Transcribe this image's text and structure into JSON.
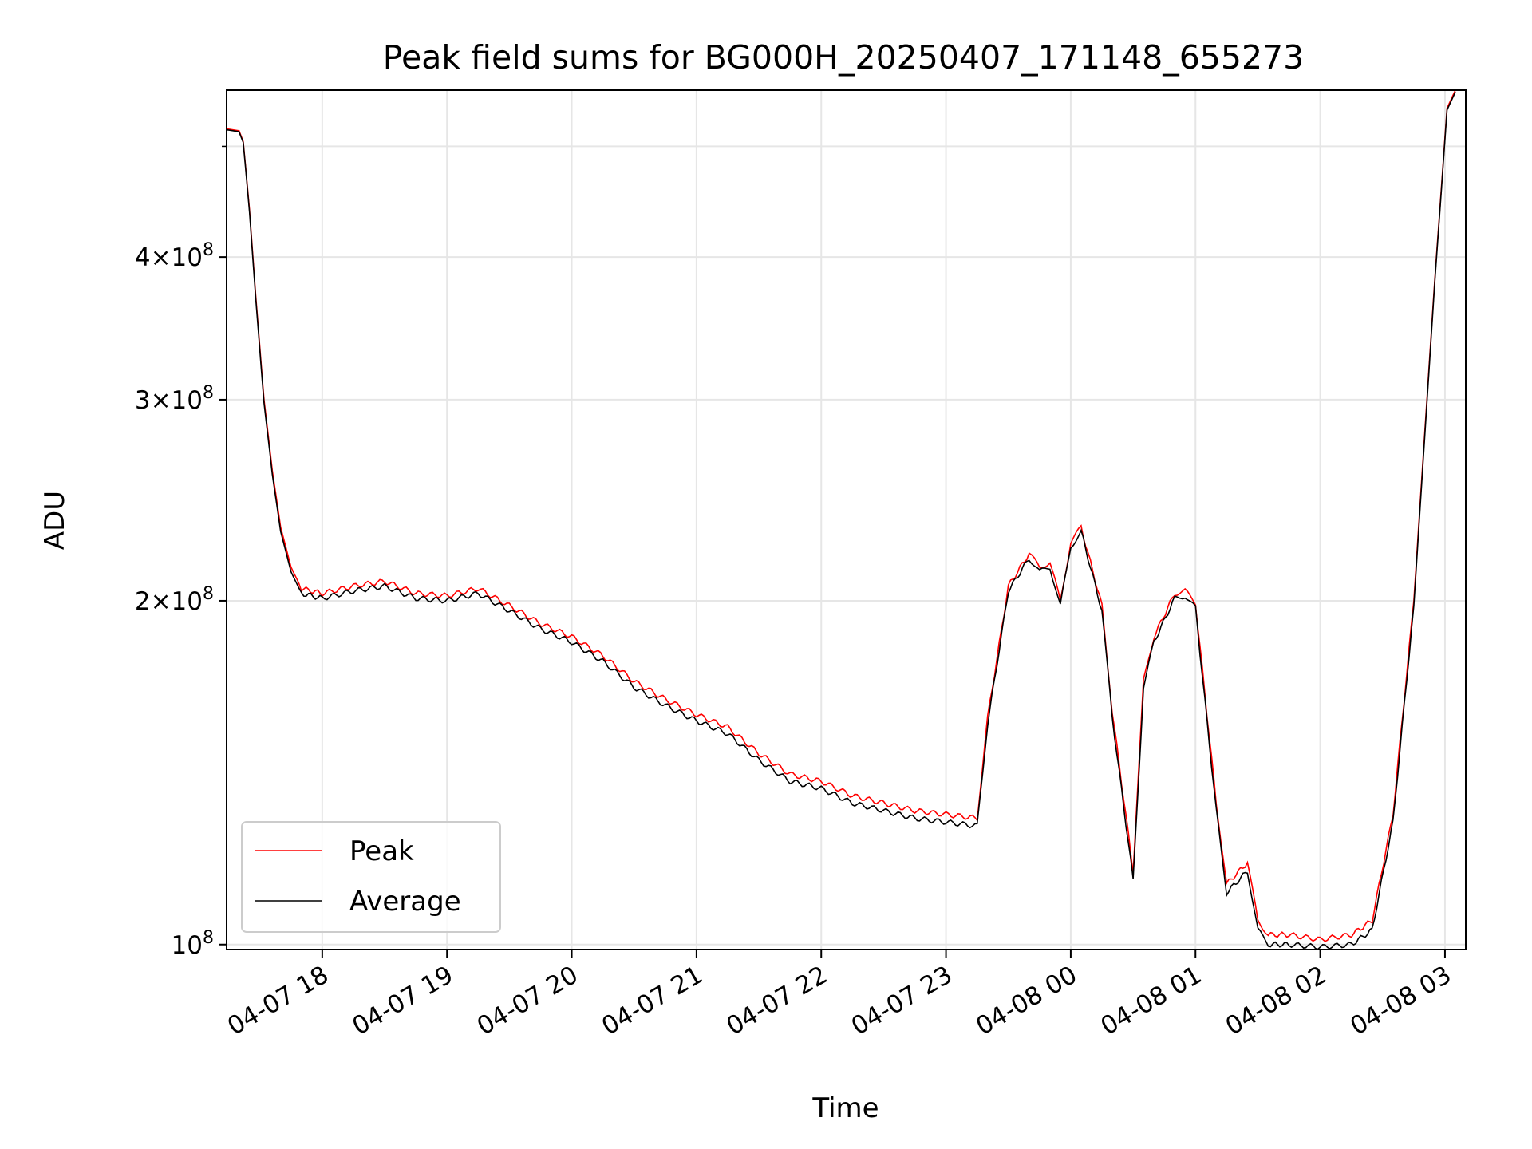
{
  "chart_data": {
    "type": "line",
    "title": "Peak field sums for BG000H_20250407_171148_655273",
    "xlabel": "Time",
    "ylabel": "ADU",
    "yscale": "log",
    "grid": true,
    "legend_position": "lower-left",
    "xlim": [
      "2025-04-07 17:14",
      "2025-04-08 03:10"
    ],
    "ylim": [
      99000000,
      560000000
    ],
    "x_ticks": [
      {
        "label": "04-07 18",
        "value": "2025-04-07 18:00"
      },
      {
        "label": "04-07 19",
        "value": "2025-04-07 19:00"
      },
      {
        "label": "04-07 20",
        "value": "2025-04-07 20:00"
      },
      {
        "label": "04-07 21",
        "value": "2025-04-07 21:00"
      },
      {
        "label": "04-07 22",
        "value": "2025-04-07 22:00"
      },
      {
        "label": "04-07 23",
        "value": "2025-04-07 23:00"
      },
      {
        "label": "04-08 00",
        "value": "2025-04-08 00:00"
      },
      {
        "label": "04-08 01",
        "value": "2025-04-08 01:00"
      },
      {
        "label": "04-08 02",
        "value": "2025-04-08 02:00"
      },
      {
        "label": "04-08 03",
        "value": "2025-04-08 03:00"
      }
    ],
    "y_ticks": [
      {
        "label": "10",
        "exp": "8",
        "value": 100000000
      },
      {
        "label": "2×10",
        "exp": "8",
        "value": 200000000
      },
      {
        "label": "3×10",
        "exp": "8",
        "value": 300000000
      },
      {
        "label": "4×10",
        "exp": "8",
        "value": 400000000
      }
    ],
    "y_minor_ticks": [
      500000000
    ],
    "x": [
      "2025-04-07 17:14",
      "2025-04-07 17:20",
      "2025-04-07 17:22",
      "2025-04-07 17:25",
      "2025-04-07 17:28",
      "2025-04-07 17:32",
      "2025-04-07 17:36",
      "2025-04-07 17:40",
      "2025-04-07 17:45",
      "2025-04-07 17:50",
      "2025-04-07 18:00",
      "2025-04-07 18:15",
      "2025-04-07 18:30",
      "2025-04-07 18:45",
      "2025-04-07 19:00",
      "2025-04-07 19:15",
      "2025-04-07 19:30",
      "2025-04-07 19:45",
      "2025-04-07 20:00",
      "2025-04-07 20:15",
      "2025-04-07 20:30",
      "2025-04-07 20:45",
      "2025-04-07 21:00",
      "2025-04-07 21:15",
      "2025-04-07 21:30",
      "2025-04-07 21:45",
      "2025-04-07 22:00",
      "2025-04-07 22:15",
      "2025-04-07 22:30",
      "2025-04-07 22:45",
      "2025-04-07 23:00",
      "2025-04-07 23:15",
      "2025-04-07 23:20",
      "2025-04-07 23:30",
      "2025-04-07 23:40",
      "2025-04-07 23:45",
      "2025-04-07 23:50",
      "2025-04-07 23:55",
      "2025-04-08 00:00",
      "2025-04-08 00:05",
      "2025-04-08 00:15",
      "2025-04-08 00:20",
      "2025-04-08 00:30",
      "2025-04-08 00:35",
      "2025-04-08 00:40",
      "2025-04-08 00:50",
      "2025-04-08 00:55",
      "2025-04-08 01:00",
      "2025-04-08 01:10",
      "2025-04-08 01:15",
      "2025-04-08 01:25",
      "2025-04-08 01:30",
      "2025-04-08 01:35",
      "2025-04-08 01:45",
      "2025-04-08 02:00",
      "2025-04-08 02:15",
      "2025-04-08 02:25",
      "2025-04-08 02:35",
      "2025-04-08 02:45",
      "2025-04-08 02:55",
      "2025-04-08 03:01",
      "2025-04-08 03:05"
    ],
    "series": [
      {
        "name": "Peak",
        "color": "#ff0000",
        "values": [
          518000000,
          516000000,
          505000000,
          440000000,
          370000000,
          300000000,
          260000000,
          232000000,
          214000000,
          205000000,
          203000000,
          206000000,
          208000000,
          203000000,
          202000000,
          205000000,
          198000000,
          191000000,
          186000000,
          179000000,
          170000000,
          164000000,
          159000000,
          155000000,
          147000000,
          141000000,
          139000000,
          135000000,
          133000000,
          131000000,
          130000000,
          129000000,
          158000000,
          206000000,
          220000000,
          214000000,
          216000000,
          200000000,
          225000000,
          232000000,
          198000000,
          160000000,
          116000000,
          170000000,
          186000000,
          203000000,
          204000000,
          199000000,
          133000000,
          113000000,
          118000000,
          105000000,
          102000000,
          102000000,
          101000000,
          102000000,
          105000000,
          130000000,
          200000000,
          380000000,
          540000000,
          560000000
        ]
      },
      {
        "name": "Average",
        "color": "#000000",
        "values": [
          517000000,
          515000000,
          504000000,
          438000000,
          368000000,
          298000000,
          258000000,
          230000000,
          212000000,
          203000000,
          201000000,
          204000000,
          206000000,
          201000000,
          200000000,
          203000000,
          196000000,
          189000000,
          184000000,
          177000000,
          168000000,
          162000000,
          157000000,
          153000000,
          145000000,
          139000000,
          137000000,
          133000000,
          131000000,
          129000000,
          128000000,
          127000000,
          156000000,
          204000000,
          218000000,
          212000000,
          214000000,
          198000000,
          223000000,
          230000000,
          196000000,
          158000000,
          114000000,
          168000000,
          184000000,
          201000000,
          202000000,
          197000000,
          131000000,
          111000000,
          116000000,
          103000000,
          100000000,
          100000000,
          99500000,
          100000000,
          103000000,
          128000000,
          198000000,
          378000000,
          538000000,
          558000000
        ]
      }
    ]
  }
}
